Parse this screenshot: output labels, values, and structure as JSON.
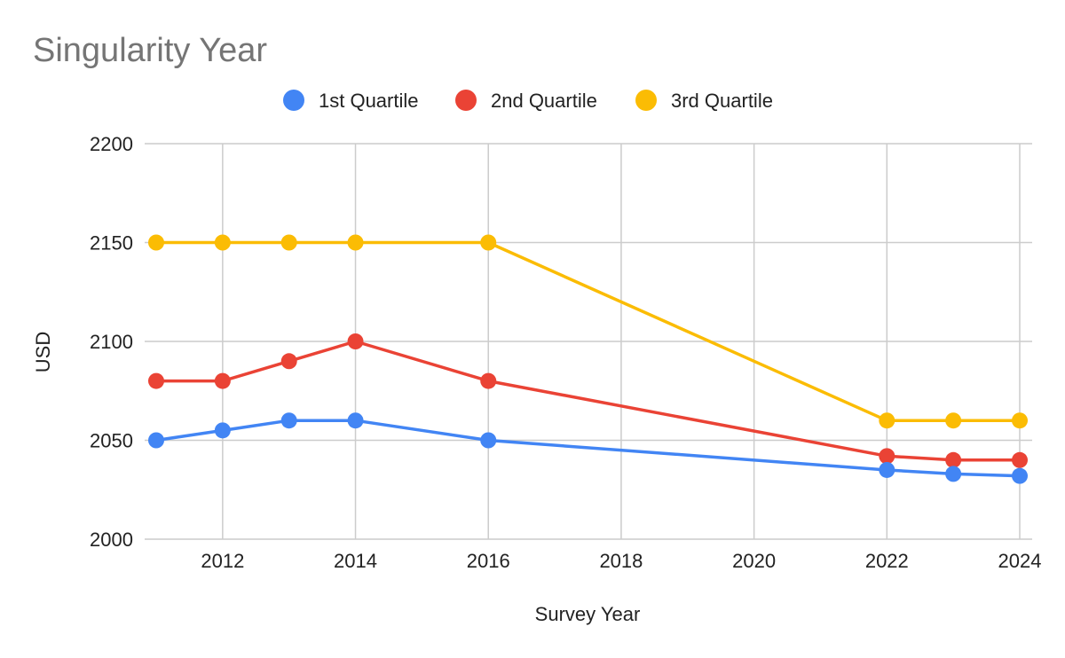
{
  "chart_data": {
    "type": "line",
    "title": "Singularity Year",
    "xlabel": "Survey Year",
    "ylabel": "USD",
    "xlim": [
      2011,
      2024
    ],
    "ylim": [
      2000,
      2200
    ],
    "x_ticks": [
      2012,
      2014,
      2016,
      2018,
      2020,
      2022,
      2024
    ],
    "y_ticks": [
      2000,
      2050,
      2100,
      2150,
      2200
    ],
    "grid": true,
    "legend_position": "top",
    "x": [
      2011,
      2012,
      2013,
      2014,
      2016,
      2022,
      2023,
      2024
    ],
    "series": [
      {
        "name": "1st Quartile",
        "color": "#4285f4",
        "values": [
          2050,
          2055,
          2060,
          2060,
          2050,
          2035,
          2033,
          2032
        ]
      },
      {
        "name": "2nd Quartile",
        "color": "#ea4335",
        "values": [
          2080,
          2080,
          2090,
          2100,
          2080,
          2042,
          2040,
          2040
        ]
      },
      {
        "name": "3rd Quartile",
        "color": "#fbbc04",
        "values": [
          2150,
          2150,
          2150,
          2150,
          2150,
          2060,
          2060,
          2060
        ]
      }
    ]
  }
}
